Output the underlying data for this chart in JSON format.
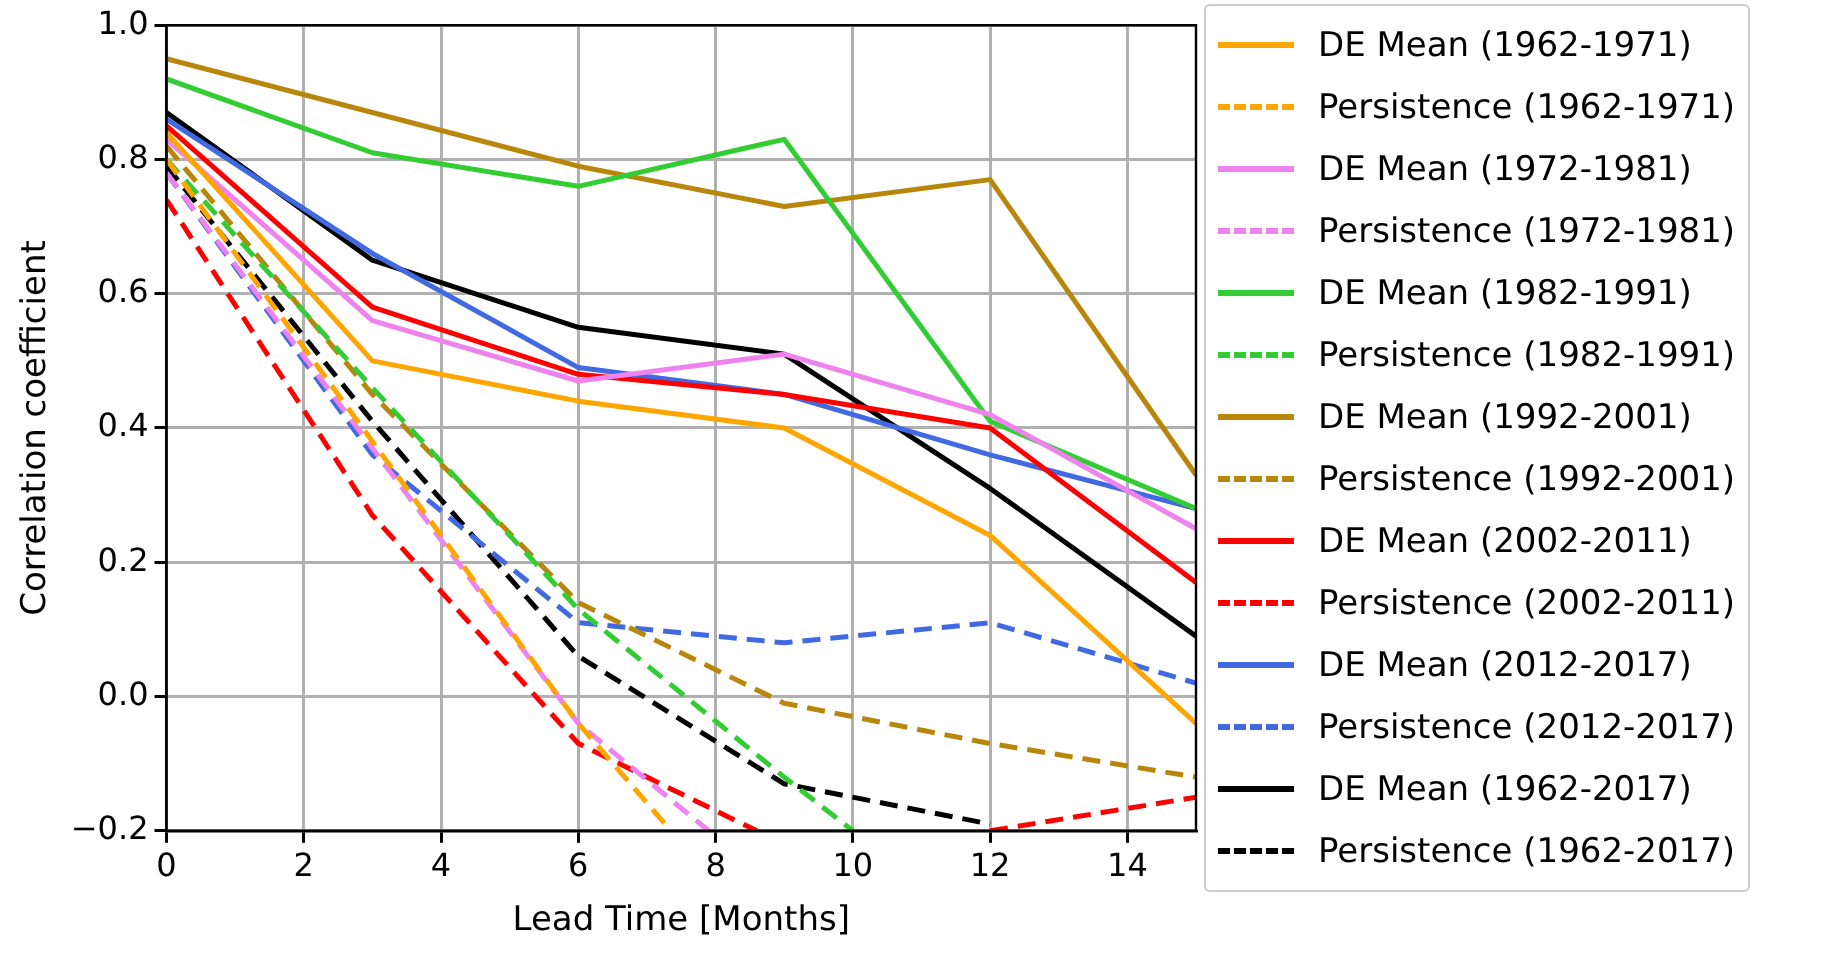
{
  "chart_data": {
    "type": "line",
    "xlabel": "Lead Time [Months]",
    "ylabel": "Correlation coefficient",
    "xlim": [
      0,
      15
    ],
    "xticks": [
      0,
      2,
      4,
      6,
      8,
      10,
      12,
      14
    ],
    "ylim": [
      -0.2,
      1.0
    ],
    "yticks": [
      {
        "value": -0.2,
        "label": "−0.2"
      },
      {
        "value": 0,
        "label": "0.0"
      },
      0.2,
      0.4,
      0.6,
      0.8,
      {
        "value": 1.0,
        "label": "1.0"
      }
    ],
    "grid": true,
    "legend": "right",
    "marker": "none",
    "series": [
      {
        "name": "DE Mean (1962-1971)",
        "color": "#ffa500",
        "line_style": "solid",
        "x": [
          0,
          3,
          6,
          9,
          12,
          15
        ],
        "values": [
          0.84,
          0.5,
          0.44,
          0.4,
          0.24,
          -0.04
        ]
      },
      {
        "name": "Persistence (1962-1971)",
        "color": "#ffa500",
        "line_style": "dashed",
        "x": [
          0,
          3,
          6,
          7.35
        ],
        "values": [
          0.8,
          0.38,
          -0.04,
          -0.2
        ]
      },
      {
        "name": "DE Mean (1972-1981)",
        "color": "#ee82ee",
        "line_style": "solid",
        "x": [
          0,
          3,
          6,
          9,
          12,
          15
        ],
        "values": [
          0.83,
          0.56,
          0.47,
          0.51,
          0.42,
          0.25
        ]
      },
      {
        "name": "Persistence (1972-1981)",
        "color": "#ee82ee",
        "line_style": "dashed",
        "x": [
          0,
          3,
          6,
          7.9
        ],
        "values": [
          0.78,
          0.37,
          -0.04,
          -0.2
        ]
      },
      {
        "name": "DE Mean (1982-1991)",
        "color": "#32cd32",
        "line_style": "solid",
        "x": [
          0,
          3,
          6,
          9,
          12,
          15
        ],
        "values": [
          0.92,
          0.81,
          0.76,
          0.83,
          0.41,
          0.28
        ]
      },
      {
        "name": "Persistence (1982-1991)",
        "color": "#32cd32",
        "line_style": "dashed",
        "x": [
          0,
          3,
          6,
          9,
          10
        ],
        "values": [
          0.8,
          0.46,
          0.13,
          -0.12,
          -0.2
        ]
      },
      {
        "name": "DE Mean (1992-2001)",
        "color": "#b8860b",
        "line_style": "solid",
        "x": [
          0,
          3,
          6,
          9,
          12,
          15
        ],
        "values": [
          0.95,
          0.87,
          0.79,
          0.73,
          0.77,
          0.33
        ]
      },
      {
        "name": "Persistence (1992-2001)",
        "color": "#b8860b",
        "line_style": "dashed",
        "x": [
          0,
          3,
          6,
          9,
          12,
          15
        ],
        "values": [
          0.82,
          0.45,
          0.14,
          -0.01,
          -0.07,
          -0.12
        ]
      },
      {
        "name": "DE Mean (2002-2011)",
        "color": "#ff0000",
        "line_style": "solid",
        "x": [
          0,
          3,
          6,
          9,
          12,
          15
        ],
        "values": [
          0.85,
          0.58,
          0.48,
          0.45,
          0.4,
          0.17
        ]
      },
      {
        "name": "Persistence (2002-2011)",
        "color": "#ff0000",
        "line_style": "dashed",
        "x": [
          0,
          3,
          6,
          8.6,
          10.5,
          12,
          15
        ],
        "values": [
          0.74,
          0.27,
          -0.07,
          -0.2,
          null,
          -0.2,
          -0.15
        ]
      },
      {
        "name": "DE Mean (2012-2017)",
        "color": "#4169e1",
        "line_style": "solid",
        "x": [
          0,
          3,
          6,
          9,
          12,
          15
        ],
        "values": [
          0.86,
          0.66,
          0.49,
          0.45,
          0.36,
          0.28
        ]
      },
      {
        "name": "Persistence (2012-2017)",
        "color": "#4169e1",
        "line_style": "dashed",
        "x": [
          0,
          3,
          6,
          9,
          12,
          15
        ],
        "values": [
          0.78,
          0.36,
          0.11,
          0.08,
          0.11,
          0.02
        ]
      },
      {
        "name": "DE Mean (1962-2017)",
        "color": "#000000",
        "line_style": "solid",
        "x": [
          0,
          3,
          6,
          9,
          12,
          15
        ],
        "values": [
          0.87,
          0.65,
          0.55,
          0.51,
          0.31,
          0.09
        ]
      },
      {
        "name": "Persistence (1962-2017)",
        "color": "#000000",
        "line_style": "dashed",
        "x": [
          0,
          3,
          6,
          9,
          12
        ],
        "values": [
          0.79,
          0.41,
          0.06,
          -0.13,
          -0.19
        ]
      }
    ]
  }
}
